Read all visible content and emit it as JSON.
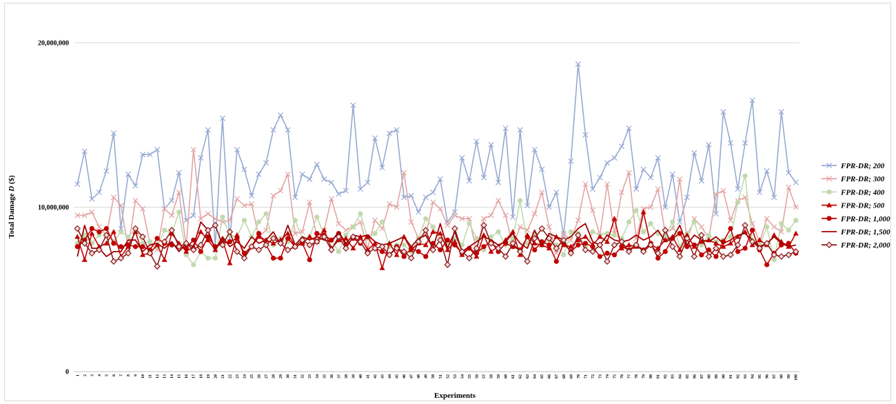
{
  "chart_data": {
    "type": "line",
    "title": "",
    "xlabel": "Experiments",
    "ylabel_prefix": "Total Damage ",
    "ylabel_var": "D",
    "ylabel_suffix": " ($)",
    "ylim": [
      0,
      20000000
    ],
    "yticks": [
      0,
      10000000,
      20000000
    ],
    "ytick_labels": [
      "0",
      "10,000,000",
      "20,000,000"
    ],
    "grid": "horizontal",
    "legend_position": "right",
    "x": [
      1,
      2,
      3,
      4,
      5,
      6,
      7,
      8,
      9,
      10,
      11,
      12,
      13,
      14,
      15,
      16,
      17,
      18,
      19,
      20,
      21,
      22,
      23,
      24,
      25,
      26,
      27,
      28,
      29,
      30,
      31,
      32,
      33,
      34,
      35,
      36,
      37,
      38,
      39,
      40,
      41,
      42,
      43,
      44,
      45,
      46,
      47,
      48,
      49,
      50,
      51,
      52,
      53,
      54,
      55,
      56,
      57,
      58,
      59,
      60,
      61,
      62,
      63,
      64,
      65,
      66,
      67,
      68,
      69,
      70,
      71,
      72,
      73,
      74,
      75,
      76,
      77,
      78,
      79,
      80,
      81,
      82,
      83,
      84,
      85,
      86,
      87,
      88,
      89,
      90,
      91,
      92,
      93,
      94,
      95,
      96,
      97,
      98,
      99,
      100
    ],
    "series": [
      {
        "name": "FPR-DR; 200",
        "color": "#95a9d3",
        "marker": "x",
        "values": [
          11.4,
          13.4,
          10.5,
          10.9,
          12.2,
          14.5,
          8.7,
          12.0,
          11.3,
          13.2,
          13.2,
          13.5,
          9.9,
          10.4,
          12.1,
          9.2,
          9.5,
          13.0,
          14.7,
          7.6,
          15.4,
          7.9,
          13.5,
          12.3,
          10.7,
          12.0,
          12.7,
          14.7,
          15.6,
          14.7,
          10.6,
          12.0,
          11.7,
          12.6,
          11.7,
          11.5,
          10.8,
          11.0,
          16.2,
          11.1,
          11.5,
          14.2,
          12.4,
          14.5,
          14.7,
          10.6,
          10.7,
          9.7,
          10.6,
          10.9,
          11.7,
          9.1,
          9.7,
          13.0,
          11.6,
          14.0,
          11.8,
          13.8,
          11.5,
          14.8,
          9.4,
          14.7,
          10.1,
          13.5,
          12.3,
          10.0,
          10.9,
          8.3,
          12.8,
          18.7,
          14.4,
          11.1,
          11.8,
          12.7,
          13.0,
          13.7,
          14.8,
          11.1,
          12.3,
          11.8,
          13.0,
          10.0,
          12.0,
          9.1,
          10.6,
          13.3,
          11.6,
          13.8,
          9.6,
          15.8,
          13.9,
          11.1,
          13.9,
          16.5,
          10.9,
          12.2,
          10.6,
          15.8,
          12.1,
          11.5
        ]
      },
      {
        "name": "FPR-DR; 300",
        "color": "#e4a3a3",
        "marker": "x",
        "values": [
          9.5,
          9.5,
          9.7,
          8.8,
          8.3,
          10.6,
          10.1,
          7.5,
          10.4,
          9.9,
          7.8,
          7.4,
          9.9,
          9.5,
          10.9,
          7.6,
          13.5,
          9.3,
          9.6,
          9.3,
          9.1,
          9.2,
          10.5,
          10.1,
          10.2,
          8.2,
          8.6,
          10.7,
          11.0,
          12.0,
          8.4,
          8.5,
          10.3,
          8.2,
          8.6,
          10.5,
          9.0,
          8.6,
          8.8,
          9.1,
          7.5,
          9.2,
          8.7,
          10.2,
          10.0,
          12.1,
          9.1,
          8.1,
          8.3,
          10.3,
          9.9,
          8.9,
          9.5,
          9.3,
          9.3,
          7.3,
          9.3,
          9.5,
          10.4,
          9.5,
          7.6,
          8.8,
          8.6,
          9.6,
          10.9,
          8.8,
          7.2,
          8.4,
          8.0,
          9.2,
          11.4,
          9.8,
          8.3,
          11.4,
          8.4,
          10.9,
          12.1,
          8.1,
          9.9,
          10.0,
          11.1,
          8.4,
          8.7,
          11.7,
          8.0,
          9.3,
          8.8,
          8.1,
          10.8,
          11.0,
          9.2,
          10.4,
          10.6,
          9.0,
          7.9,
          9.3,
          8.8,
          8.5,
          11.2,
          10.0
        ]
      },
      {
        "name": "FPR-DR; 400",
        "color": "#c1d9ae",
        "marker": "circle",
        "values": [
          7.8,
          8.3,
          7.8,
          8.3,
          8.7,
          7.9,
          8.5,
          8.2,
          8.7,
          7.8,
          7.9,
          7.6,
          8.6,
          8.4,
          9.7,
          7.1,
          6.5,
          7.3,
          6.9,
          6.9,
          9.4,
          8.3,
          8.2,
          9.2,
          8.2,
          9.1,
          9.6,
          7.7,
          8.1,
          7.9,
          9.2,
          8.1,
          8.2,
          9.4,
          8.3,
          8.0,
          7.3,
          8.3,
          8.8,
          9.6,
          8.1,
          8.4,
          9.1,
          7.6,
          7.7,
          7.7,
          7.3,
          8.1,
          9.3,
          8.8,
          8.0,
          7.8,
          8.1,
          7.7,
          9.0,
          8.1,
          7.4,
          8.2,
          8.5,
          7.7,
          8.1,
          10.4,
          7.8,
          8.4,
          7.7,
          8.0,
          7.7,
          7.1,
          8.5,
          8.4,
          7.6,
          8.5,
          8.3,
          8.4,
          8.3,
          8.1,
          9.1,
          9.8,
          8.5,
          9.0,
          8.4,
          8.2,
          9.1,
          7.6,
          8.4,
          9.1,
          7.7,
          8.3,
          7.9,
          8.0,
          8.2,
          10.3,
          11.9,
          8.0,
          7.7,
          8.8,
          6.8,
          9.0,
          8.6,
          9.2
        ]
      },
      {
        "name": "FPR-DR; 500",
        "color": "#c00000",
        "marker": "triangle",
        "values": [
          8.2,
          6.8,
          8.4,
          7.6,
          7.8,
          8.5,
          7.0,
          7.6,
          8.5,
          7.1,
          7.2,
          7.7,
          6.8,
          8.4,
          7.8,
          7.3,
          7.6,
          8.5,
          8.0,
          7.4,
          8.0,
          6.6,
          8.3,
          7.0,
          7.6,
          8.2,
          8.0,
          7.8,
          8.0,
          8.4,
          7.6,
          7.8,
          8.2,
          7.9,
          8.6,
          7.5,
          8.0,
          8.1,
          7.5,
          8.2,
          7.4,
          7.8,
          6.3,
          7.8,
          7.1,
          8.2,
          7.4,
          7.8,
          7.7,
          8.5,
          8.4,
          7.4,
          7.9,
          7.1,
          7.5,
          7.0,
          8.3,
          7.3,
          7.6,
          8.0,
          8.5,
          7.1,
          8.3,
          7.8,
          7.7,
          7.5,
          8.2,
          7.7,
          7.6,
          8.0,
          8.2,
          7.7,
          8.2,
          7.9,
          9.3,
          7.5,
          7.7,
          7.6,
          9.7,
          7.7,
          7.5,
          8.0,
          8.2,
          7.4,
          8.3,
          7.6,
          7.9,
          8.0,
          7.8,
          7.6,
          7.8,
          8.2,
          8.5,
          7.7,
          8.0,
          7.7,
          8.3,
          7.9,
          7.6,
          8.4
        ]
      },
      {
        "name": "FPR-DR; 1,000",
        "color": "#c00000",
        "marker": "circle",
        "values": [
          7.6,
          8.0,
          8.7,
          8.5,
          8.7,
          7.8,
          7.6,
          7.7,
          7.6,
          7.6,
          7.4,
          8.1,
          7.8,
          7.7,
          7.6,
          7.5,
          8.0,
          7.3,
          8.2,
          7.6,
          7.8,
          7.9,
          8.1,
          7.2,
          7.6,
          8.4,
          7.7,
          6.9,
          6.9,
          8.1,
          7.6,
          7.8,
          6.8,
          8.4,
          8.3,
          8.0,
          8.4,
          7.7,
          8.1,
          7.8,
          8.2,
          7.5,
          7.3,
          7.1,
          7.6,
          7.0,
          7.5,
          7.3,
          7.0,
          7.8,
          7.4,
          8.0,
          7.7,
          7.2,
          7.5,
          7.2,
          7.6,
          7.9,
          7.3,
          7.8,
          7.6,
          7.4,
          8.2,
          7.4,
          7.9,
          7.7,
          6.7,
          7.8,
          7.3,
          7.7,
          7.8,
          7.6,
          7.0,
          7.2,
          7.1,
          7.6,
          7.4,
          7.7,
          7.4,
          7.8,
          6.9,
          7.3,
          8.1,
          8.4,
          7.6,
          7.7,
          7.1,
          7.4,
          7.0,
          7.9,
          8.7,
          7.3,
          7.5,
          8.6,
          7.4,
          6.5,
          7.2,
          7.7,
          7.8,
          7.2
        ]
      },
      {
        "name": "FPR-DR; 1,500",
        "color": "#a00000",
        "marker": "none",
        "values": [
          7.0,
          8.9,
          7.5,
          7.5,
          7.0,
          7.3,
          7.3,
          8.0,
          8.0,
          7.3,
          7.7,
          7.8,
          7.5,
          7.9,
          7.3,
          7.8,
          7.6,
          9.1,
          8.6,
          7.4,
          8.2,
          7.6,
          7.9,
          7.5,
          8.2,
          7.8,
          8.0,
          8.5,
          7.7,
          8.9,
          7.7,
          8.2,
          8.0,
          8.2,
          8.0,
          7.9,
          8.5,
          7.8,
          8.3,
          8.2,
          8.3,
          7.9,
          7.7,
          7.8,
          8.0,
          8.2,
          7.6,
          8.1,
          8.3,
          7.5,
          9.0,
          7.5,
          8.5,
          7.3,
          7.6,
          7.9,
          8.2,
          8.0,
          7.7,
          7.9,
          8.4,
          7.8,
          7.5,
          8.6,
          7.6,
          8.4,
          8.2,
          8.0,
          8.2,
          8.7,
          9.0,
          7.9,
          7.7,
          8.3,
          8.0,
          7.9,
          8.0,
          8.3,
          8.0,
          8.2,
          8.6,
          7.9,
          8.1,
          8.9,
          7.7,
          8.3,
          8.0,
          7.9,
          8.2,
          7.8,
          8.0,
          8.3,
          8.4,
          8.0,
          7.6,
          7.8,
          8.2,
          7.8,
          7.6,
          7.7
        ]
      },
      {
        "name": "FPR-DR; 2,000",
        "color": "#8b1a1a",
        "marker": "diamond",
        "values": [
          8.7,
          7.8,
          7.2,
          7.4,
          8.3,
          6.7,
          6.9,
          7.2,
          8.7,
          8.2,
          7.2,
          6.4,
          7.9,
          8.6,
          7.6,
          7.8,
          7.4,
          7.7,
          8.6,
          8.9,
          7.7,
          8.5,
          7.3,
          6.9,
          7.6,
          7.4,
          7.7,
          8.1,
          7.8,
          7.4,
          7.6,
          8.0,
          7.7,
          7.9,
          8.2,
          7.4,
          8.2,
          7.5,
          8.2,
          7.9,
          7.2,
          7.5,
          7.6,
          7.1,
          7.5,
          7.3,
          6.9,
          7.9,
          8.6,
          7.4,
          8.0,
          6.5,
          8.7,
          7.3,
          6.9,
          7.5,
          8.9,
          7.8,
          7.5,
          7.0,
          7.8,
          7.3,
          6.7,
          8.1,
          8.7,
          8.1,
          7.5,
          8.0,
          7.2,
          8.3,
          7.4,
          7.3,
          7.7,
          6.7,
          7.7,
          7.9,
          7.3,
          7.7,
          7.3,
          7.7,
          7.2,
          8.6,
          7.6,
          7.0,
          8.1,
          7.0,
          8.3,
          7.0,
          7.5,
          7.0,
          7.1,
          7.7,
          8.9,
          7.9,
          7.5,
          7.8,
          7.1,
          7.0,
          7.1,
          7.3
        ]
      }
    ]
  }
}
